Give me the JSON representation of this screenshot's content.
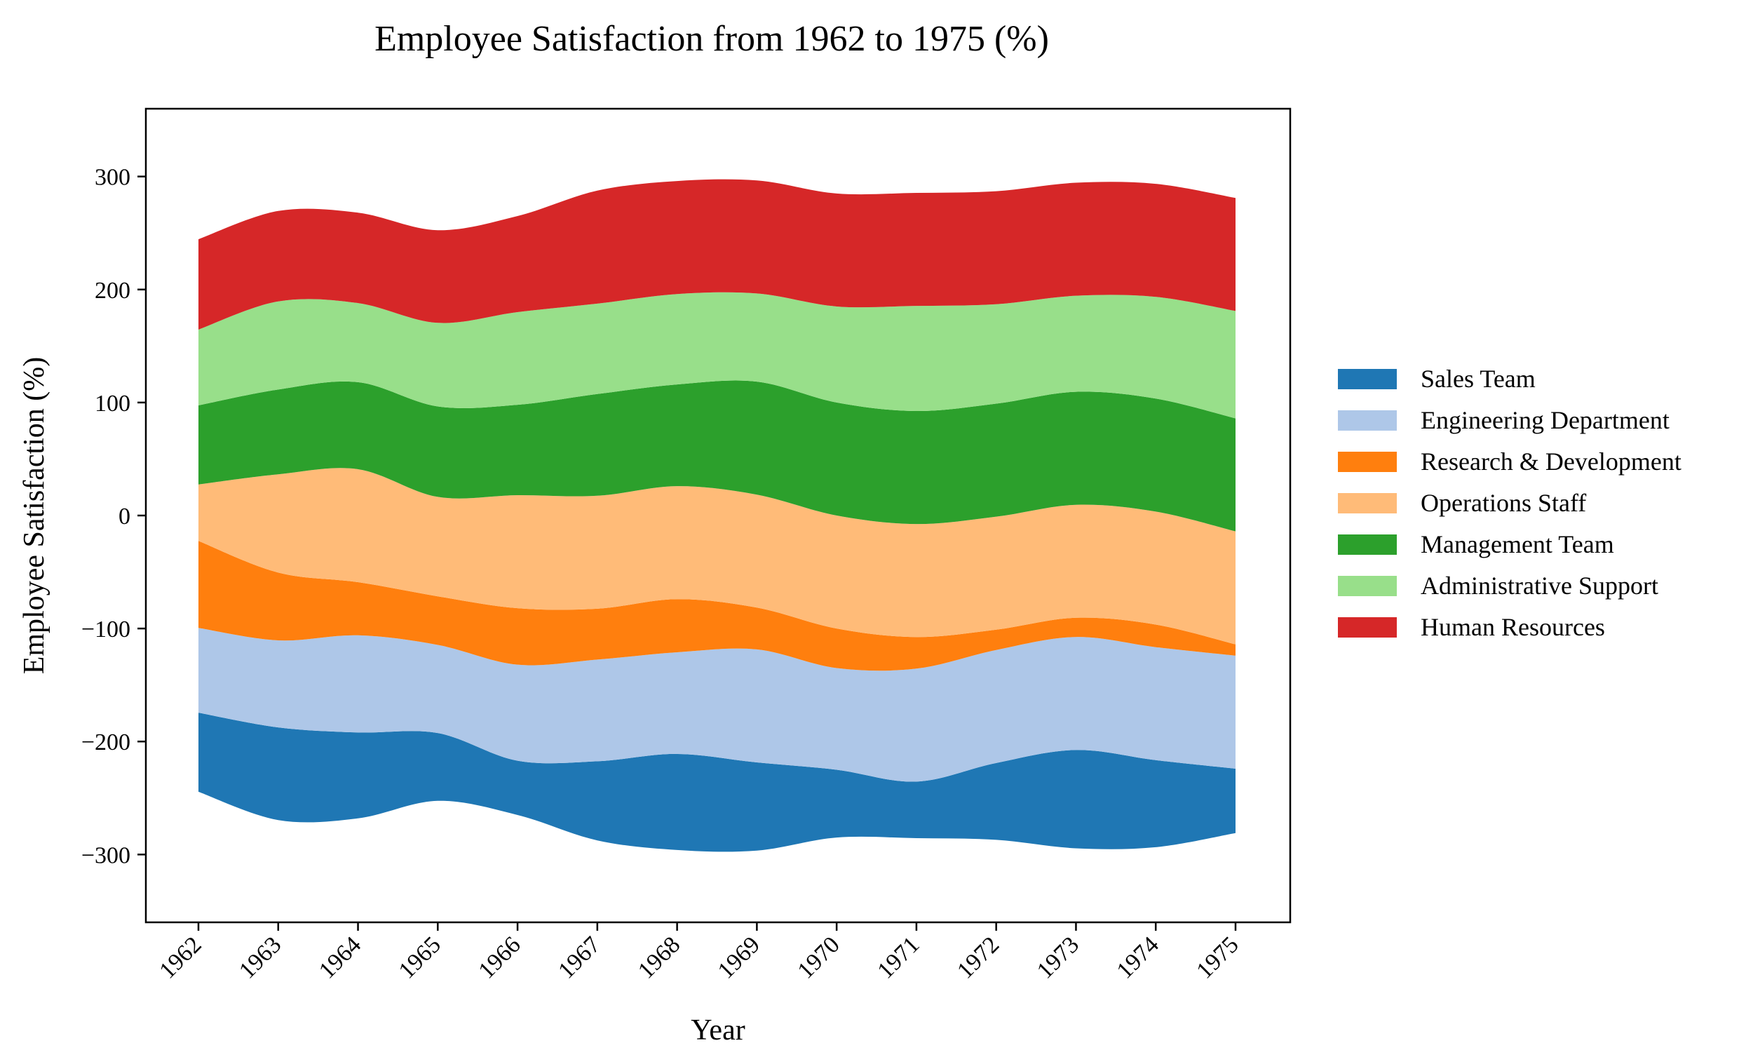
{
  "chart_data": {
    "type": "area",
    "subtype": "streamgraph",
    "title": "Employee Satisfaction from 1962 to 1975 (%)",
    "xlabel": "Year",
    "ylabel": "Employee Satisfaction (%)",
    "x": [
      1962,
      1963,
      1964,
      1965,
      1966,
      1967,
      1968,
      1969,
      1970,
      1971,
      1972,
      1973,
      1974,
      1975
    ],
    "xticklabels": [
      "1962",
      "1963",
      "1964",
      "1965",
      "1966",
      "1967",
      "1968",
      "1969",
      "1970",
      "1971",
      "1972",
      "1973",
      "1974",
      "1975"
    ],
    "ylim": [
      -360,
      360
    ],
    "yticks": [
      -300,
      -200,
      -100,
      0,
      100,
      200,
      300
    ],
    "yticklabels": [
      "−300",
      "−200",
      "−100",
      "0",
      "100",
      "200",
      "300"
    ],
    "grid": false,
    "legend_position": "right",
    "series": [
      {
        "name": "Sales Team",
        "color": "#1f77b4",
        "values": [
          70,
          82,
          76,
          60,
          48,
          70,
          85,
          78,
          60,
          50,
          68,
          87,
          77,
          57
        ]
      },
      {
        "name": "Engineering Department",
        "color": "#aec7e8",
        "values": [
          75,
          77,
          86,
          78,
          85,
          90,
          90,
          100,
          90,
          100,
          100,
          100,
          100,
          100
        ]
      },
      {
        "name": "Research & Development",
        "color": "#ff7f0e",
        "values": [
          77,
          60,
          47,
          43,
          50,
          45,
          47,
          37,
          35,
          28,
          18,
          17,
          20,
          10
        ]
      },
      {
        "name": "Operations Staff",
        "color": "#ffbb78",
        "values": [
          50,
          87,
          100,
          88,
          100,
          100,
          100,
          100,
          100,
          100,
          100,
          100,
          100,
          100
        ]
      },
      {
        "name": "Management Team",
        "color": "#2ca02c",
        "values": [
          70,
          75,
          77,
          80,
          80,
          90,
          90,
          100,
          100,
          100,
          100,
          100,
          100,
          100
        ]
      },
      {
        "name": "Administrative Support",
        "color": "#98df8a",
        "values": [
          67,
          78,
          70,
          74,
          82,
          80,
          80,
          78,
          85,
          93,
          88,
          85,
          90,
          95
        ]
      },
      {
        "name": "Human Resources",
        "color": "#d62728",
        "values": [
          80,
          80,
          80,
          82,
          85,
          100,
          100,
          100,
          100,
          100,
          100,
          100,
          100,
          100
        ]
      }
    ]
  }
}
